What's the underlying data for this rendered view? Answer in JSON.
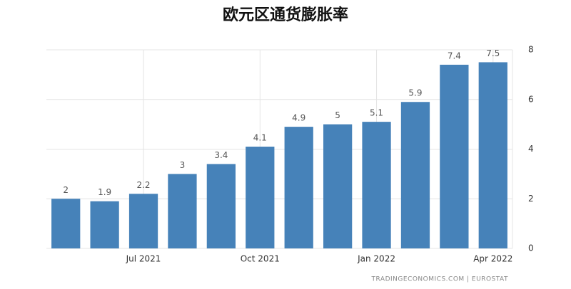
{
  "chart_data": {
    "type": "bar",
    "title": "欧元区通货膨胀率",
    "categories": [
      null,
      null,
      "Jul 2021",
      null,
      null,
      "Oct 2021",
      null,
      null,
      "Jan 2022",
      null,
      null,
      "Apr 2022"
    ],
    "values": [
      2,
      1.9,
      2.2,
      3,
      3.4,
      4.1,
      4.9,
      5,
      5.1,
      5.9,
      7.4,
      7.5
    ],
    "color": "#4682b9",
    "ylim": [
      0,
      8
    ],
    "yticks": [
      0,
      2,
      4,
      6,
      8
    ],
    "grid": true,
    "y_axis_side": "right",
    "source": "TRADINGECONOMICS.COM | EUROSTAT"
  }
}
